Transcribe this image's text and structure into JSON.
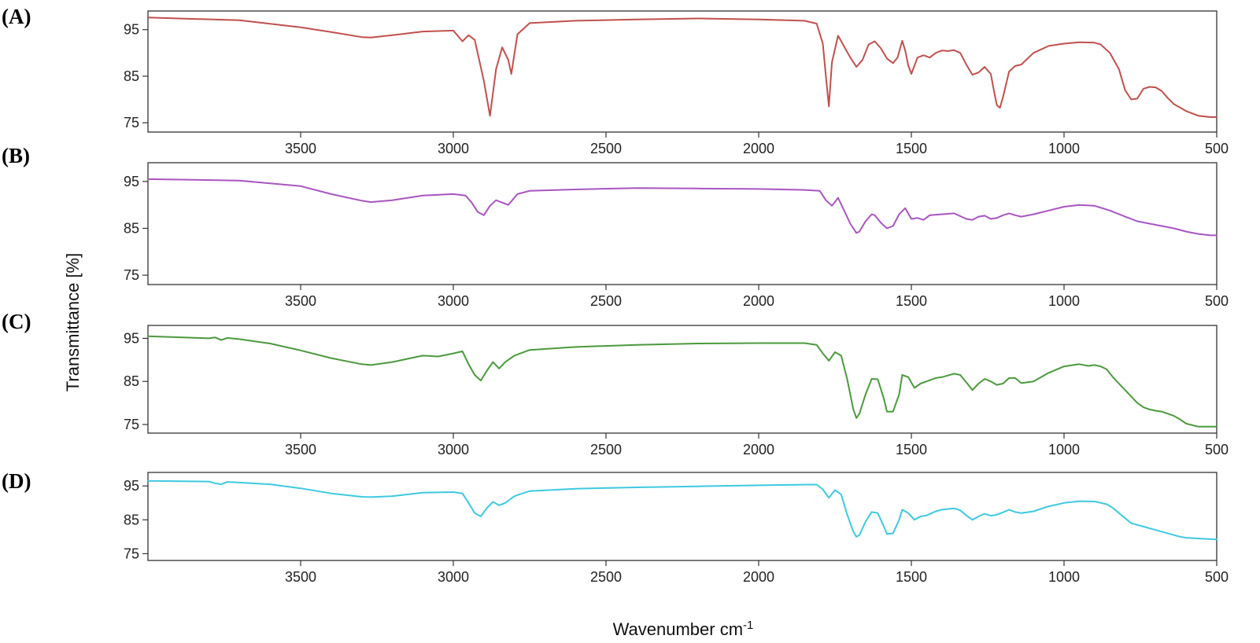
{
  "chart_data": [
    {
      "type": "line",
      "panel_label": "(A)",
      "xlabel": "Wavenumber cm-1",
      "ylabel": "Transmittance [%]",
      "xlim": [
        4000,
        500
      ],
      "ylim": [
        73,
        99
      ],
      "x_ticks": [
        3500,
        3000,
        2500,
        2000,
        1500,
        1000,
        500
      ],
      "y_ticks": [
        75,
        85,
        95
      ],
      "color": "#c0504d",
      "series": [
        {
          "x": [
            4000,
            3700,
            3500,
            3400,
            3300,
            3270,
            3200,
            3100,
            3000,
            2970,
            2950,
            2930,
            2900,
            2880,
            2860,
            2840,
            2820,
            2810,
            2790,
            2750,
            2600,
            2400,
            2200,
            2000,
            1850,
            1810,
            1790,
            1780,
            1770,
            1760,
            1740,
            1700,
            1680,
            1660,
            1640,
            1620,
            1600,
            1580,
            1560,
            1545,
            1530,
            1520,
            1510,
            1500,
            1480,
            1460,
            1440,
            1420,
            1400,
            1380,
            1360,
            1340,
            1320,
            1300,
            1280,
            1260,
            1240,
            1230,
            1220,
            1210,
            1200,
            1180,
            1160,
            1140,
            1100,
            1050,
            1000,
            950,
            900,
            880,
            850,
            820,
            800,
            780,
            760,
            740,
            720,
            700,
            680,
            660,
            640,
            600,
            560,
            520,
            500
          ],
          "y": [
            97.6,
            97.0,
            95.5,
            94.5,
            93.4,
            93.3,
            93.8,
            94.6,
            94.8,
            92.5,
            93.8,
            92.8,
            84.0,
            76.5,
            86.5,
            91.2,
            88.5,
            85.5,
            94.0,
            96.4,
            96.9,
            97.2,
            97.4,
            97.2,
            96.9,
            96.3,
            92.0,
            85.0,
            78.5,
            88.0,
            93.7,
            89.0,
            87.0,
            88.5,
            91.8,
            92.5,
            91.0,
            88.8,
            87.8,
            89.0,
            92.6,
            90.5,
            87.3,
            85.5,
            89.0,
            89.5,
            89.0,
            90.0,
            90.5,
            90.4,
            90.6,
            90.0,
            87.5,
            85.3,
            85.8,
            87.0,
            85.5,
            82.0,
            78.8,
            78.2,
            80.5,
            86.0,
            87.2,
            87.5,
            90.0,
            91.5,
            92.0,
            92.3,
            92.2,
            91.8,
            90.0,
            86.5,
            82.0,
            80.0,
            80.2,
            82.3,
            82.7,
            82.6,
            81.8,
            80.3,
            79.0,
            77.5,
            76.5,
            76.2,
            76.2
          ]
        }
      ]
    },
    {
      "type": "line",
      "panel_label": "(B)",
      "xlabel": "Wavenumber cm-1",
      "ylabel": "Transmittance [%]",
      "xlim": [
        4000,
        500
      ],
      "ylim": [
        73,
        99
      ],
      "x_ticks": [
        3500,
        3000,
        2500,
        2000,
        1500,
        1000,
        500
      ],
      "y_ticks": [
        75,
        85,
        95
      ],
      "color": "#a855c0",
      "series": [
        {
          "x": [
            4000,
            3700,
            3500,
            3400,
            3300,
            3270,
            3200,
            3100,
            3000,
            2960,
            2940,
            2920,
            2900,
            2880,
            2860,
            2840,
            2820,
            2790,
            2750,
            2600,
            2400,
            2200,
            2000,
            1850,
            1800,
            1780,
            1760,
            1740,
            1720,
            1700,
            1680,
            1670,
            1650,
            1630,
            1620,
            1600,
            1580,
            1560,
            1540,
            1520,
            1500,
            1480,
            1460,
            1440,
            1400,
            1360,
            1320,
            1300,
            1280,
            1260,
            1240,
            1220,
            1200,
            1180,
            1160,
            1140,
            1100,
            1050,
            1000,
            950,
            900,
            850,
            800,
            760,
            720,
            680,
            640,
            600,
            560,
            520,
            500
          ],
          "y": [
            95.5,
            95.2,
            94.0,
            92.3,
            90.9,
            90.6,
            91.0,
            92.0,
            92.3,
            92.0,
            90.5,
            88.5,
            87.8,
            89.8,
            91.0,
            90.5,
            90.0,
            92.3,
            93.0,
            93.3,
            93.6,
            93.5,
            93.4,
            93.2,
            93.0,
            91.0,
            89.8,
            91.5,
            88.8,
            86.0,
            84.0,
            84.3,
            86.5,
            88.0,
            87.8,
            86.2,
            85.0,
            85.5,
            88.0,
            89.3,
            87.0,
            87.2,
            86.8,
            87.8,
            88.0,
            88.2,
            87.0,
            86.8,
            87.5,
            87.7,
            87.0,
            87.2,
            87.8,
            88.2,
            87.8,
            87.5,
            88.0,
            88.8,
            89.6,
            90.0,
            89.8,
            88.8,
            87.5,
            86.5,
            86.0,
            85.5,
            85.0,
            84.3,
            83.8,
            83.5,
            83.5
          ]
        }
      ]
    },
    {
      "type": "line",
      "panel_label": "(C)",
      "xlabel": "Wavenumber cm-1",
      "ylabel": "Transmittance [%]",
      "xlim": [
        4000,
        500
      ],
      "ylim": [
        73,
        98
      ],
      "x_ticks": [
        3500,
        3000,
        2500,
        2000,
        1500,
        1000,
        500
      ],
      "y_ticks": [
        75,
        85,
        95
      ],
      "color": "#4a9a3c",
      "series": [
        {
          "x": [
            4000,
            3800,
            3780,
            3760,
            3740,
            3700,
            3600,
            3500,
            3400,
            3300,
            3270,
            3200,
            3100,
            3050,
            3000,
            2970,
            2950,
            2930,
            2910,
            2890,
            2870,
            2850,
            2830,
            2800,
            2750,
            2600,
            2400,
            2200,
            2000,
            1850,
            1810,
            1790,
            1770,
            1750,
            1730,
            1710,
            1690,
            1680,
            1670,
            1650,
            1630,
            1610,
            1590,
            1580,
            1560,
            1540,
            1530,
            1510,
            1490,
            1470,
            1450,
            1420,
            1400,
            1360,
            1340,
            1320,
            1300,
            1280,
            1260,
            1240,
            1220,
            1200,
            1180,
            1160,
            1140,
            1100,
            1050,
            1000,
            950,
            920,
            900,
            880,
            860,
            840,
            820,
            800,
            780,
            760,
            740,
            720,
            700,
            680,
            640,
            620,
            600,
            560,
            520,
            500
          ],
          "y": [
            95.5,
            95.0,
            95.2,
            94.6,
            95.1,
            94.8,
            93.8,
            92.2,
            90.4,
            89.0,
            88.8,
            89.5,
            91.0,
            90.8,
            91.5,
            92.0,
            89.0,
            86.5,
            85.2,
            87.5,
            89.5,
            88.0,
            89.5,
            91.0,
            92.3,
            93.0,
            93.5,
            93.8,
            93.9,
            93.9,
            93.5,
            91.5,
            89.8,
            91.8,
            91.0,
            85.5,
            78.5,
            76.5,
            77.5,
            82.0,
            85.6,
            85.5,
            81.0,
            78.0,
            78.0,
            82.0,
            86.5,
            86.0,
            83.5,
            84.5,
            85.0,
            85.8,
            86.0,
            86.8,
            86.5,
            84.8,
            83.0,
            84.5,
            85.6,
            85.0,
            84.2,
            84.5,
            85.8,
            85.8,
            84.6,
            85.0,
            87.0,
            88.5,
            89.0,
            88.6,
            88.8,
            88.5,
            87.8,
            86.0,
            84.5,
            83.0,
            81.5,
            80.0,
            79.0,
            78.5,
            78.2,
            78.0,
            77.0,
            76.2,
            75.2,
            74.5,
            74.5,
            74.5
          ]
        }
      ]
    },
    {
      "type": "line",
      "panel_label": "(D)",
      "xlabel": "Wavenumber cm-1",
      "ylabel": "Transmittance [%]",
      "xlim": [
        4000,
        500
      ],
      "ylim": [
        73,
        99
      ],
      "x_ticks": [
        3500,
        3000,
        2500,
        2000,
        1500,
        1000,
        500
      ],
      "y_ticks": [
        75,
        85,
        95
      ],
      "color": "#3ec9e0",
      "series": [
        {
          "x": [
            4000,
            3800,
            3780,
            3760,
            3740,
            3700,
            3600,
            3500,
            3400,
            3300,
            3270,
            3200,
            3100,
            3000,
            2970,
            2950,
            2930,
            2910,
            2890,
            2870,
            2850,
            2830,
            2800,
            2750,
            2600,
            2400,
            2200,
            2000,
            1850,
            1810,
            1790,
            1770,
            1750,
            1730,
            1710,
            1690,
            1680,
            1670,
            1650,
            1630,
            1610,
            1590,
            1580,
            1560,
            1540,
            1530,
            1510,
            1490,
            1470,
            1450,
            1420,
            1400,
            1360,
            1340,
            1320,
            1300,
            1280,
            1260,
            1240,
            1220,
            1200,
            1180,
            1160,
            1140,
            1100,
            1050,
            1000,
            950,
            900,
            860,
            840,
            820,
            800,
            780,
            760,
            740,
            720,
            700,
            680,
            640,
            620,
            600,
            560,
            520,
            500
          ],
          "y": [
            96.5,
            96.3,
            95.8,
            95.5,
            96.2,
            96.0,
            95.5,
            94.3,
            92.8,
            91.8,
            91.7,
            92.0,
            93.0,
            93.2,
            92.8,
            90.0,
            87.0,
            86.0,
            88.5,
            90.3,
            89.3,
            90.0,
            92.0,
            93.5,
            94.2,
            94.6,
            94.9,
            95.2,
            95.4,
            95.4,
            94.0,
            91.5,
            93.8,
            92.5,
            86.5,
            81.5,
            80.0,
            80.5,
            84.5,
            87.3,
            87.0,
            83.0,
            80.8,
            81.0,
            85.0,
            88.0,
            87.0,
            85.0,
            86.0,
            86.3,
            87.5,
            88.0,
            88.4,
            87.8,
            86.3,
            85.0,
            86.0,
            86.8,
            86.2,
            86.5,
            87.2,
            88.0,
            87.3,
            87.0,
            87.5,
            89.0,
            90.0,
            90.5,
            90.4,
            89.6,
            88.5,
            87.0,
            85.5,
            84.0,
            83.5,
            83.0,
            82.5,
            82.0,
            81.5,
            80.5,
            80.0,
            79.7,
            79.5,
            79.3,
            79.2
          ]
        }
      ]
    }
  ]
}
